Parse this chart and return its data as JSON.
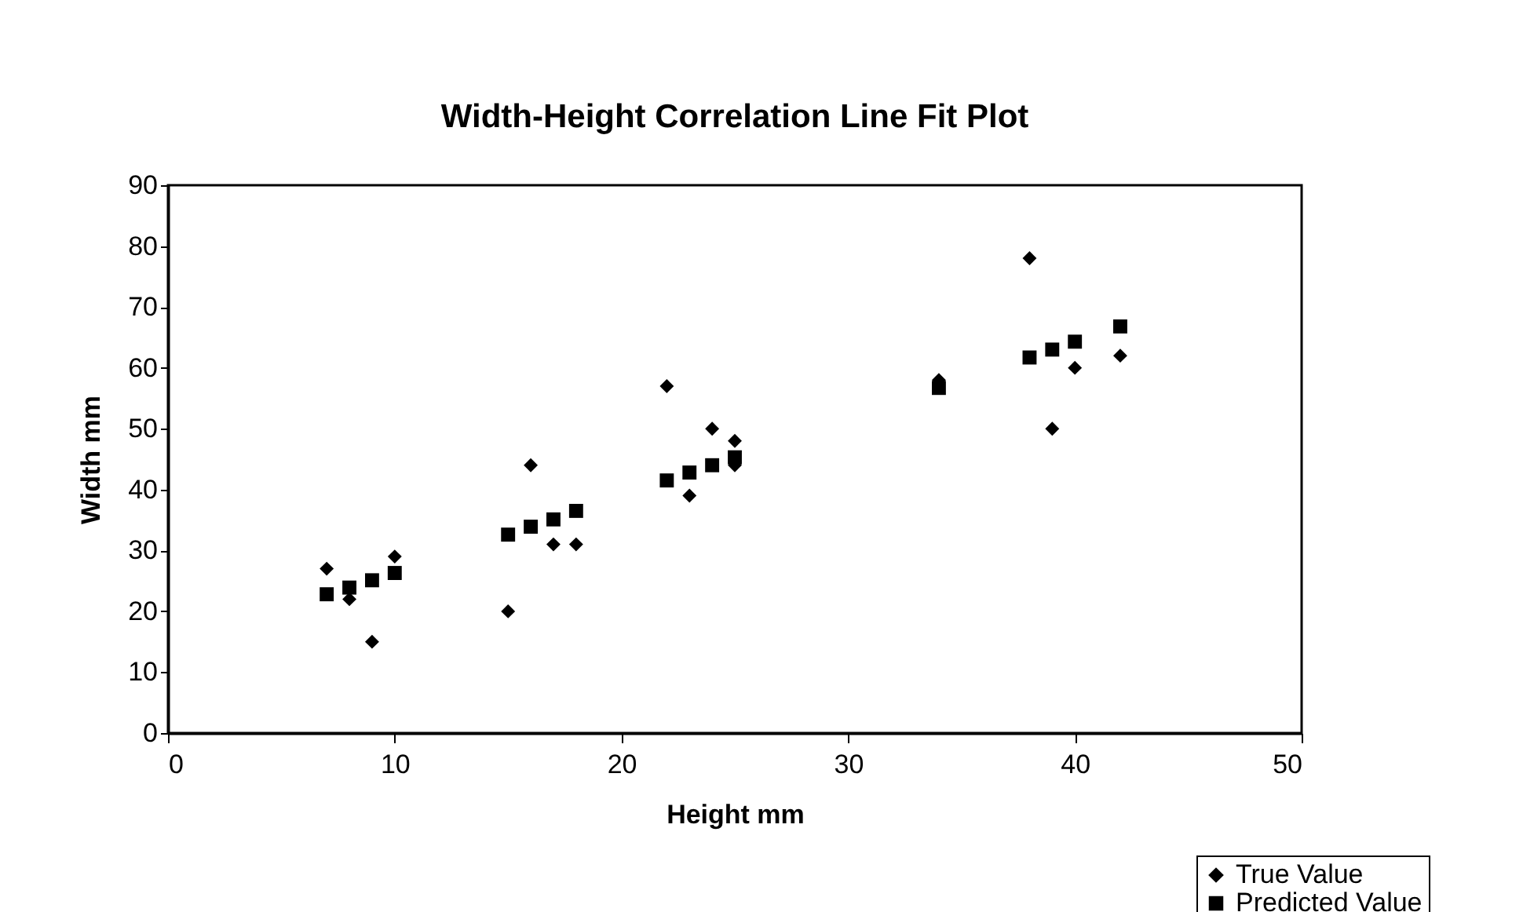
{
  "chart_data": {
    "type": "scatter",
    "title": "Width-Height Correlation Line Fit  Plot",
    "xlabel": "Height mm",
    "ylabel": "Width mm",
    "x": [
      7,
      8,
      9,
      10,
      15,
      16,
      17,
      18,
      22,
      23,
      24,
      25,
      25,
      34,
      38,
      39,
      40,
      42
    ],
    "series": [
      {
        "name": "True Value",
        "color": "#000000",
        "marker": "diamond",
        "values": [
          27,
          22,
          15,
          29,
          20,
          44,
          31,
          31,
          57,
          39,
          50,
          48,
          44,
          58,
          78,
          50,
          60,
          62
        ]
      },
      {
        "name": "Predicted Value",
        "color": "#000000",
        "marker": "square",
        "values": [
          22.8,
          23.9,
          25.1,
          26.3,
          32.6,
          33.9,
          35.1,
          36.5,
          41.5,
          42.8,
          44,
          45.3,
          null,
          56.7,
          61.7,
          63,
          64.3,
          66.8
        ]
      }
    ],
    "xlim": [
      0,
      50
    ],
    "xticks": [
      0,
      10,
      20,
      30,
      40,
      50
    ],
    "ylim": [
      0,
      90
    ],
    "yticks": [
      0,
      10,
      20,
      30,
      40,
      50,
      60,
      70,
      80,
      90
    ],
    "grid": false,
    "legend": "bottom right"
  }
}
